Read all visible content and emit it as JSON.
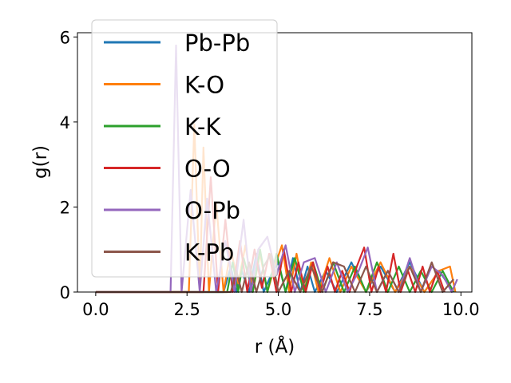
{
  "chart_data": {
    "type": "line",
    "xlabel": "r (Å)",
    "ylabel": "g(r)",
    "xlim": [
      -0.5,
      10.3
    ],
    "ylim": [
      0,
      6.1
    ],
    "xticks": [
      "0.0",
      "2.5",
      "5.0",
      "7.5",
      "10.0"
    ],
    "yticks": [
      "0",
      "2",
      "4",
      "6"
    ],
    "legend_position": "top-left",
    "grid": false,
    "series": [
      {
        "name": "Pb-Pb",
        "color": "#1f77b4",
        "x": [
          0,
          3.5,
          3.7,
          3.85,
          4.0,
          4.2,
          4.4,
          4.6,
          4.8,
          5.0,
          5.2,
          5.4,
          5.6,
          5.8,
          6.0,
          6.3,
          6.6,
          7.0,
          7.4,
          7.8,
          8.2,
          8.6,
          9.0,
          9.4,
          9.8
        ],
        "y": [
          0,
          0,
          0.6,
          0,
          0.5,
          0,
          0.9,
          0,
          0.4,
          0.7,
          0,
          0.8,
          0,
          0.6,
          0,
          0.5,
          0,
          0.7,
          0,
          0.6,
          0,
          0.7,
          0,
          0.5,
          0
        ]
      },
      {
        "name": "K-O",
        "color": "#ff7f0e",
        "x": [
          0,
          2.55,
          2.7,
          2.85,
          2.95,
          3.1,
          3.3,
          3.5,
          3.7,
          3.9,
          4.1,
          4.3,
          4.5,
          4.7,
          4.9,
          5.1,
          5.3,
          5.5,
          5.7,
          5.9,
          6.1,
          6.4,
          6.7,
          7.0,
          7.4,
          7.8,
          8.2,
          8.6,
          9.0,
          9.4,
          9.7,
          9.85
        ],
        "y": [
          0,
          0,
          3.95,
          0,
          3.4,
          0,
          2.1,
          0,
          1.0,
          0.2,
          1.1,
          0,
          0.9,
          0,
          0.6,
          1.1,
          0,
          0.9,
          0,
          0.7,
          0,
          0.8,
          0,
          0.6,
          0,
          0.7,
          0,
          0.6,
          0,
          0.5,
          0.6,
          0
        ]
      },
      {
        "name": "K-K",
        "color": "#2ca02c",
        "x": [
          0,
          3.6,
          3.75,
          3.9,
          4.05,
          4.3,
          4.5,
          4.7,
          4.95,
          5.2,
          5.45,
          5.7,
          5.95,
          6.2,
          6.5,
          6.8,
          7.1,
          7.4,
          7.7,
          8.0,
          8.3,
          8.6,
          8.9,
          9.2,
          9.5,
          9.8
        ],
        "y": [
          0,
          0,
          0.7,
          0,
          0.8,
          0,
          1.0,
          0,
          0.9,
          0,
          0.8,
          0,
          0.7,
          0,
          0.7,
          0,
          0.6,
          0,
          0.7,
          0,
          0.6,
          0,
          0.5,
          0,
          0.5,
          0
        ]
      },
      {
        "name": "O-O",
        "color": "#d62728",
        "x": [
          0,
          2.95,
          3.15,
          3.35,
          3.55,
          3.75,
          3.95,
          4.15,
          4.35,
          4.55,
          4.75,
          4.95,
          5.15,
          5.35,
          5.55,
          5.75,
          5.95,
          6.15,
          6.35,
          6.55,
          6.75,
          6.95,
          7.15,
          7.35,
          7.55,
          7.75,
          7.95,
          8.15,
          8.35,
          8.55,
          8.75,
          8.95,
          9.15,
          9.35,
          9.55
        ],
        "y": [
          0,
          0,
          2.7,
          0,
          1.7,
          0,
          1.2,
          0,
          1.0,
          0.1,
          0.9,
          0,
          1.0,
          0,
          0.7,
          0,
          0.7,
          0,
          0.6,
          0,
          0.5,
          0,
          0.6,
          1.05,
          0,
          0.6,
          0,
          0.9,
          0,
          0.5,
          0,
          0.6,
          0,
          0.5,
          0
        ]
      },
      {
        "name": "O-Pb",
        "color": "#9467bd",
        "x": [
          0,
          2.05,
          2.2,
          2.35,
          2.6,
          2.85,
          3.05,
          3.3,
          3.55,
          3.8,
          4.05,
          4.25,
          4.45,
          4.7,
          4.95,
          5.2,
          5.45,
          5.7,
          6.0,
          6.3,
          6.6,
          6.9,
          7.2,
          7.45,
          7.7,
          8.0,
          8.3,
          8.6,
          8.9,
          9.2,
          9.5,
          9.75,
          9.9
        ],
        "y": [
          0,
          0,
          5.8,
          0,
          2.4,
          0,
          2.2,
          0,
          1.2,
          0,
          1.7,
          0,
          1.0,
          1.3,
          0.4,
          1.1,
          0,
          0.7,
          0.8,
          0,
          0.7,
          0,
          0.5,
          1.05,
          0,
          0.5,
          0,
          0.8,
          0,
          0.6,
          0.4,
          0,
          0.3
        ]
      },
      {
        "name": "K-Pb",
        "color": "#8c564b",
        "x": [
          0,
          3.7,
          3.85,
          4.0,
          4.2,
          4.4,
          4.6,
          4.8,
          5.0,
          5.3,
          5.6,
          5.9,
          6.2,
          6.5,
          6.8,
          7.1,
          7.4,
          7.7,
          8.0,
          8.3,
          8.6,
          8.9,
          9.2,
          9.5,
          9.8
        ],
        "y": [
          0,
          0,
          0.5,
          0,
          0.7,
          0,
          0.6,
          0.9,
          0,
          0.5,
          0,
          0.6,
          0,
          0.7,
          0.6,
          0,
          0.6,
          0,
          0.5,
          0,
          0.6,
          0,
          0.7,
          0,
          0.3
        ]
      }
    ]
  }
}
